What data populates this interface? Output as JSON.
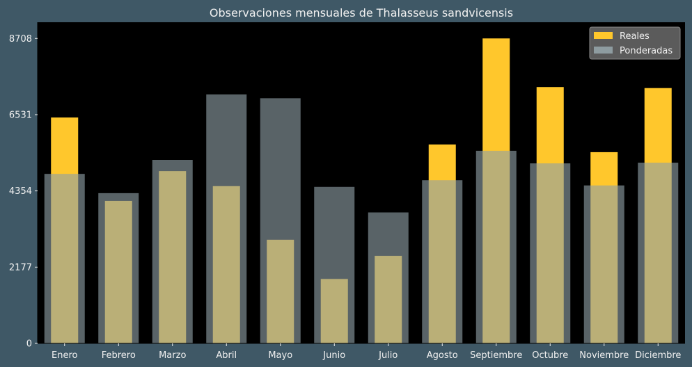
{
  "chart_data": {
    "type": "bar",
    "title": "Observaciones mensuales de Thalasseus sandvicensis",
    "xlabel": "",
    "ylabel": "",
    "categories": [
      "Enero",
      "Febrero",
      "Marzo",
      "Abril",
      "Mayo",
      "Junio",
      "Julio",
      "Agosto",
      "Septiembre",
      "Octubre",
      "Noviembre",
      "Diciembre"
    ],
    "series": [
      {
        "name": "Reales",
        "color": "#ffc72c",
        "values": [
          6450,
          4070,
          4920,
          4490,
          2960,
          1840,
          2500,
          5680,
          8708,
          7320,
          5460,
          7290
        ]
      },
      {
        "name": "Ponderadas",
        "color": "#8fa0a6",
        "values": [
          4840,
          4290,
          5240,
          7110,
          7000,
          4470,
          3740,
          4660,
          5500,
          5140,
          4510,
          5160
        ]
      }
    ],
    "yticks": [
      0,
      2177,
      4354,
      6531,
      8708
    ],
    "ylim": [
      0,
      9170
    ],
    "legend_position": "top-right",
    "grid": false,
    "plot_background": "#000000",
    "figure_background": "#3f5866"
  }
}
